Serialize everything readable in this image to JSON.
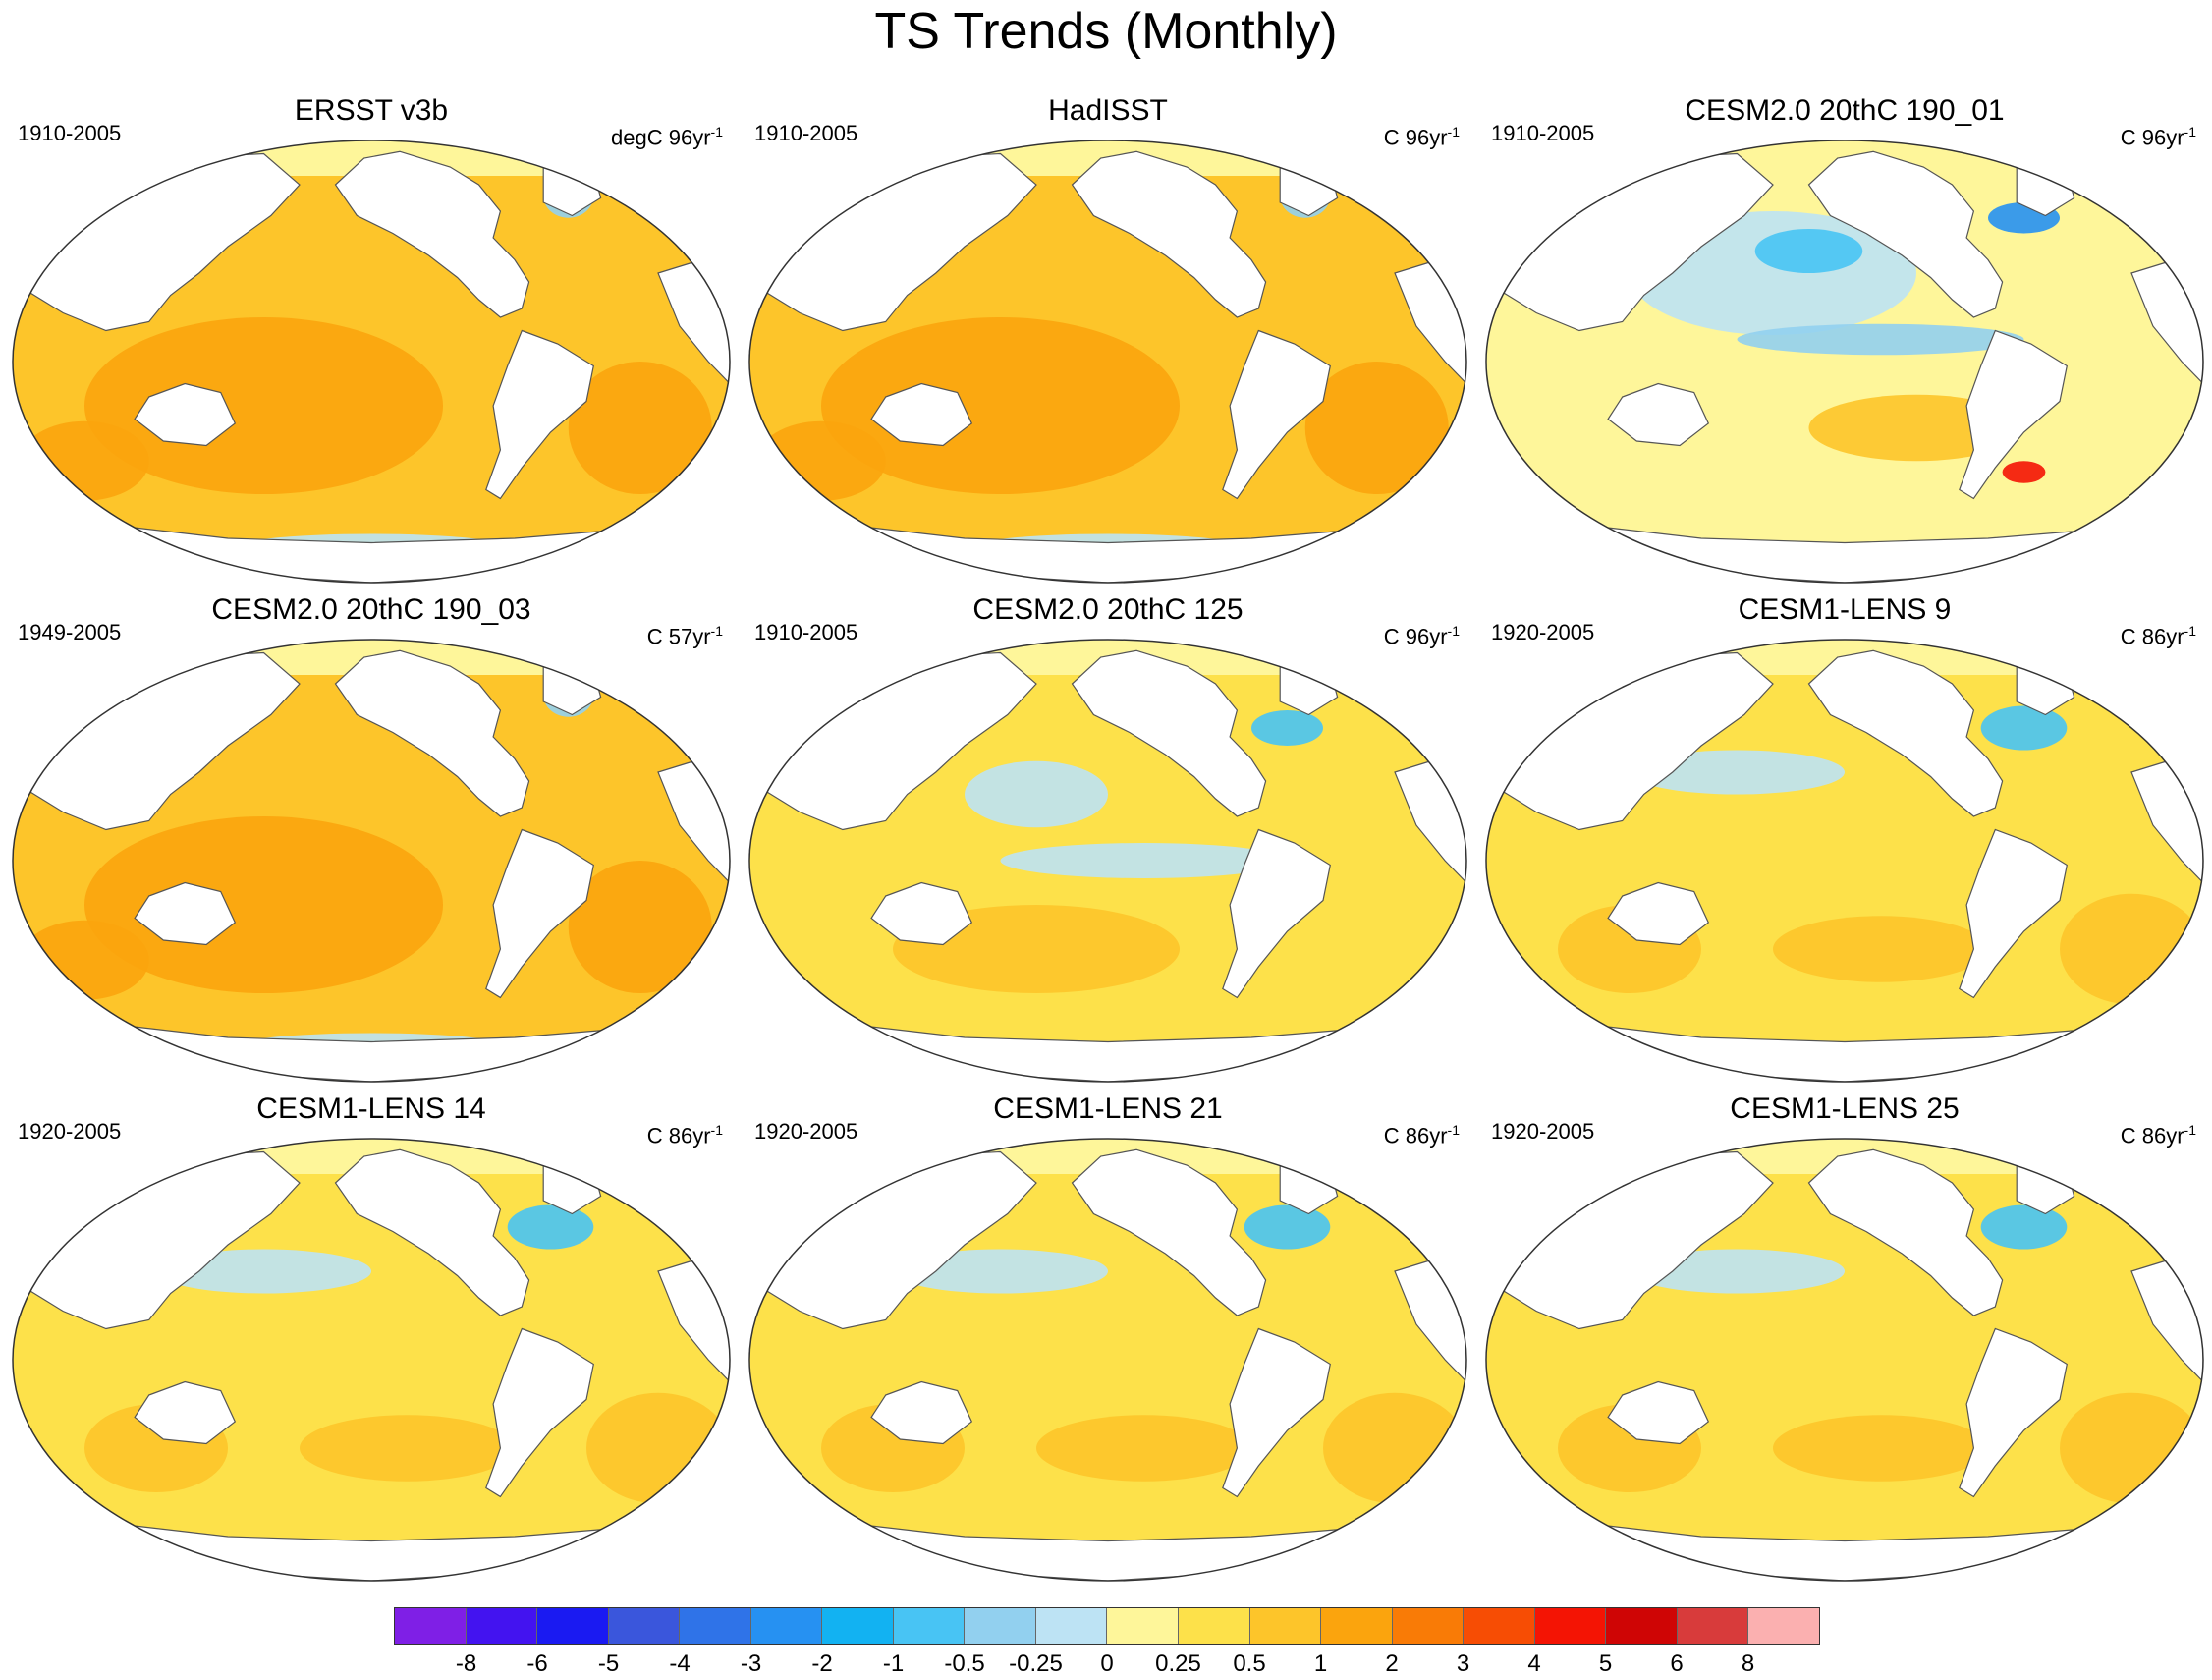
{
  "title": "TS Trends (Monthly)",
  "panels": [
    {
      "title": "ERSST v3b",
      "period": "1910-2005",
      "units": "degC 96yr",
      "units_sup": "-1",
      "style": "warm"
    },
    {
      "title": "HadISST",
      "period": "1910-2005",
      "units": "C 96yr",
      "units_sup": "-1",
      "style": "warm"
    },
    {
      "title": "CESM2.0 20thC 190_01",
      "period": "1910-2005",
      "units": "C 96yr",
      "units_sup": "-1",
      "style": "cool"
    },
    {
      "title": "CESM2.0 20thC 190_03",
      "period": "1949-2005",
      "units": "C 57yr",
      "units_sup": "-1",
      "style": "warm"
    },
    {
      "title": "CESM2.0 20thC 125",
      "period": "1910-2005",
      "units": "C 96yr",
      "units_sup": "-1",
      "style": "mixed"
    },
    {
      "title": "CESM1-LENS 9",
      "period": "1920-2005",
      "units": "C 86yr",
      "units_sup": "-1",
      "style": "mild"
    },
    {
      "title": "CESM1-LENS 14",
      "period": "1920-2005",
      "units": "C 86yr",
      "units_sup": "-1",
      "style": "mild"
    },
    {
      "title": "CESM1-LENS 21",
      "period": "1920-2005",
      "units": "C 86yr",
      "units_sup": "-1",
      "style": "mild"
    },
    {
      "title": "CESM1-LENS 25",
      "period": "1920-2005",
      "units": "C 86yr",
      "units_sup": "-1",
      "style": "mild"
    }
  ],
  "colorbar": {
    "labels": [
      "-8",
      "-6",
      "-5",
      "-4",
      "-3",
      "-2",
      "-1",
      "-0.5",
      "-0.25",
      "0",
      "0.25",
      "0.5",
      "1",
      "2",
      "3",
      "4",
      "5",
      "6",
      "8"
    ],
    "colors": [
      "#7f1fe6",
      "#4313f0",
      "#1a1af2",
      "#3a56dc",
      "#2f73e8",
      "#2691f2",
      "#12b2f2",
      "#48c4f4",
      "#92d0ef",
      "#bde3f4",
      "#fef69a",
      "#fde14a",
      "#fdc52a",
      "#fba40d",
      "#f97b06",
      "#f74d04",
      "#f41404",
      "#cf0505",
      "#d83b3b",
      "#fbb0b0"
    ]
  }
}
